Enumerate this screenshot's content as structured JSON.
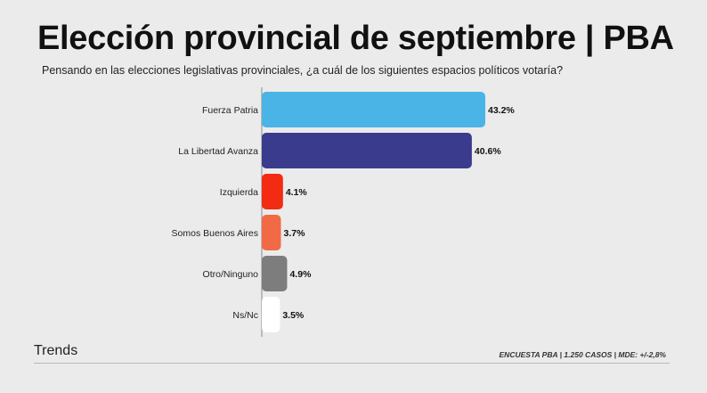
{
  "header": {
    "title": "Elección provincial de septiembre | PBA",
    "subtitle": "Pensando en las elecciones legislativas provinciales, ¿a cuál de los siguientes espacios políticos votaría?"
  },
  "footer": {
    "brand": "Trends",
    "note": "ENCUESTA PBA | 1.250 CASOS | MDE: +/-2,8%"
  },
  "chart_data": {
    "type": "bar",
    "orientation": "horizontal",
    "title": "Elección provincial de septiembre | PBA",
    "subtitle": "Pensando en las elecciones legislativas provinciales, ¿a cuál de los siguientes espacios políticos votaría?",
    "categories": [
      "Fuerza Patria",
      "La Libertad Avanza",
      "Izquierda",
      "Somos Buenos Aires",
      "Otro/Ninguno",
      "Ns/Nc"
    ],
    "values": [
      43.2,
      40.6,
      4.1,
      3.7,
      4.9,
      3.5
    ],
    "data_labels": [
      "43.2%",
      "40.6%",
      "4.1%",
      "3.7%",
      "4.9%",
      "3.5%"
    ],
    "colors": [
      "#4ab4e6",
      "#3b3b8e",
      "#f22b12",
      "#f26a45",
      "#7d7d7d",
      "#ffffff"
    ],
    "xlim": [
      0,
      43.2
    ],
    "grid": false,
    "legend": "none"
  }
}
